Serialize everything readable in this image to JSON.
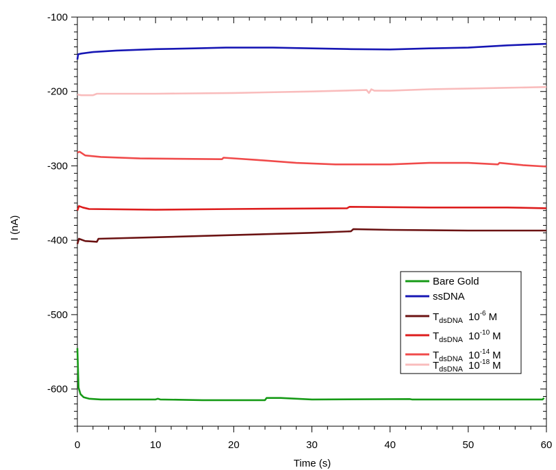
{
  "chart_data": {
    "type": "line",
    "xlabel": "Time (s)",
    "ylabel": "I (nA)",
    "xlim": [
      0,
      60
    ],
    "ylim": [
      -650,
      -100
    ],
    "xticks": [
      0,
      10,
      20,
      30,
      40,
      50,
      60
    ],
    "yticks": [
      -100,
      -200,
      -300,
      -400,
      -500,
      -600
    ],
    "xtick_labels": [
      "0",
      "10",
      "20",
      "30",
      "40",
      "50",
      "60"
    ],
    "ytick_labels": [
      "-100",
      "-200",
      "-300",
      "-400",
      "-500",
      "-600"
    ],
    "grid": false,
    "legend_position": "bottom-right",
    "legend_labels": {
      "bare": "Bare Gold",
      "ss": "ssDNA",
      "t_main": "T",
      "t_sub": "dsDNA",
      "t_base": "10",
      "unit": "M",
      "exp6": "-6",
      "exp10": "-10",
      "exp14": "-14",
      "exp18": "-18"
    },
    "series": [
      {
        "name": "Bare Gold",
        "color": "#169a16",
        "points": [
          [
            0,
            -545
          ],
          [
            0.15,
            -598
          ],
          [
            0.4,
            -607
          ],
          [
            0.8,
            -611
          ],
          [
            1.5,
            -613
          ],
          [
            3,
            -614
          ],
          [
            10,
            -614
          ],
          [
            10.3,
            -613
          ],
          [
            10.6,
            -614
          ],
          [
            16,
            -615
          ],
          [
            24,
            -615
          ],
          [
            24.2,
            -612
          ],
          [
            26,
            -612
          ],
          [
            28,
            -613
          ],
          [
            30,
            -614
          ],
          [
            42.5,
            -613.5
          ],
          [
            42.8,
            -614
          ],
          [
            59.5,
            -614
          ],
          [
            59.7,
            -612
          ]
        ]
      },
      {
        "name": "ssDNA",
        "color": "#1616b4",
        "points": [
          [
            0,
            -157
          ],
          [
            0.1,
            -150
          ],
          [
            0.5,
            -149
          ],
          [
            2,
            -147
          ],
          [
            5,
            -145
          ],
          [
            10,
            -143
          ],
          [
            15,
            -142
          ],
          [
            19,
            -141
          ],
          [
            25,
            -141
          ],
          [
            30,
            -142
          ],
          [
            35,
            -143
          ],
          [
            40,
            -143.5
          ],
          [
            45,
            -142
          ],
          [
            50,
            -141
          ],
          [
            55,
            -138
          ],
          [
            60,
            -136
          ]
        ]
      },
      {
        "name": "T dsDNA 10-6 M",
        "color": "#6b1212",
        "points": [
          [
            0,
            -405
          ],
          [
            0.2,
            -398
          ],
          [
            1,
            -401
          ],
          [
            2.5,
            -402
          ],
          [
            2.7,
            -398
          ],
          [
            10,
            -396
          ],
          [
            20,
            -393
          ],
          [
            30,
            -390
          ],
          [
            35,
            -388
          ],
          [
            35.3,
            -385
          ],
          [
            40,
            -386
          ],
          [
            50,
            -387
          ],
          [
            60,
            -387
          ]
        ]
      },
      {
        "name": "T dsDNA 10-10 M",
        "color": "#dd1c1c",
        "points": [
          [
            0,
            -360
          ],
          [
            0.2,
            -354
          ],
          [
            0.7,
            -356
          ],
          [
            1.5,
            -358
          ],
          [
            10,
            -359
          ],
          [
            20,
            -358
          ],
          [
            34.5,
            -357
          ],
          [
            34.8,
            -355
          ],
          [
            45,
            -356
          ],
          [
            55,
            -356
          ],
          [
            60,
            -357
          ]
        ]
      },
      {
        "name": "T dsDNA 10-14 M",
        "color": "#f04a4a",
        "points": [
          [
            0,
            -282
          ],
          [
            0.3,
            -281
          ],
          [
            1,
            -286
          ],
          [
            3,
            -288
          ],
          [
            8,
            -290
          ],
          [
            18.5,
            -291
          ],
          [
            18.7,
            -289
          ],
          [
            23,
            -292
          ],
          [
            28,
            -296
          ],
          [
            33,
            -298
          ],
          [
            40,
            -298
          ],
          [
            45,
            -296
          ],
          [
            50,
            -296
          ],
          [
            53.8,
            -298
          ],
          [
            54,
            -296
          ],
          [
            57,
            -299
          ],
          [
            60,
            -301
          ]
        ]
      },
      {
        "name": "T dsDNA 10-18 M",
        "color": "#f9bcbc",
        "points": [
          [
            0,
            -204
          ],
          [
            0.5,
            -205
          ],
          [
            2,
            -205
          ],
          [
            2.5,
            -203
          ],
          [
            10,
            -203
          ],
          [
            20,
            -202
          ],
          [
            30,
            -200
          ],
          [
            37,
            -198
          ],
          [
            37.3,
            -202
          ],
          [
            37.6,
            -197
          ],
          [
            38,
            -199
          ],
          [
            40,
            -199
          ],
          [
            45,
            -197
          ],
          [
            50,
            -196
          ],
          [
            55,
            -195
          ],
          [
            60,
            -194
          ]
        ]
      }
    ]
  }
}
